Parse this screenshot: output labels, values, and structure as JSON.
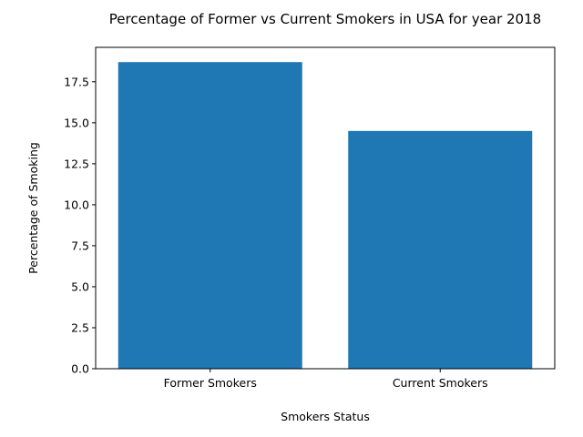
{
  "chart_data": {
    "type": "bar",
    "title": "Percentage of Former vs Current Smokers in USA for year 2018",
    "xlabel": "Smokers Status",
    "ylabel": "Percentage of Smoking",
    "categories": [
      "Former Smokers",
      "Current Smokers"
    ],
    "values": [
      18.7,
      14.5
    ],
    "ylim": [
      0,
      19.6
    ],
    "yticks": [
      0.0,
      2.5,
      5.0,
      7.5,
      10.0,
      12.5,
      15.0,
      17.5
    ],
    "ytick_labels": [
      "0.0",
      "2.5",
      "5.0",
      "7.5",
      "10.0",
      "12.5",
      "15.0",
      "17.5"
    ],
    "bar_color": "#1f77b4",
    "grid": false,
    "legend": "none"
  }
}
